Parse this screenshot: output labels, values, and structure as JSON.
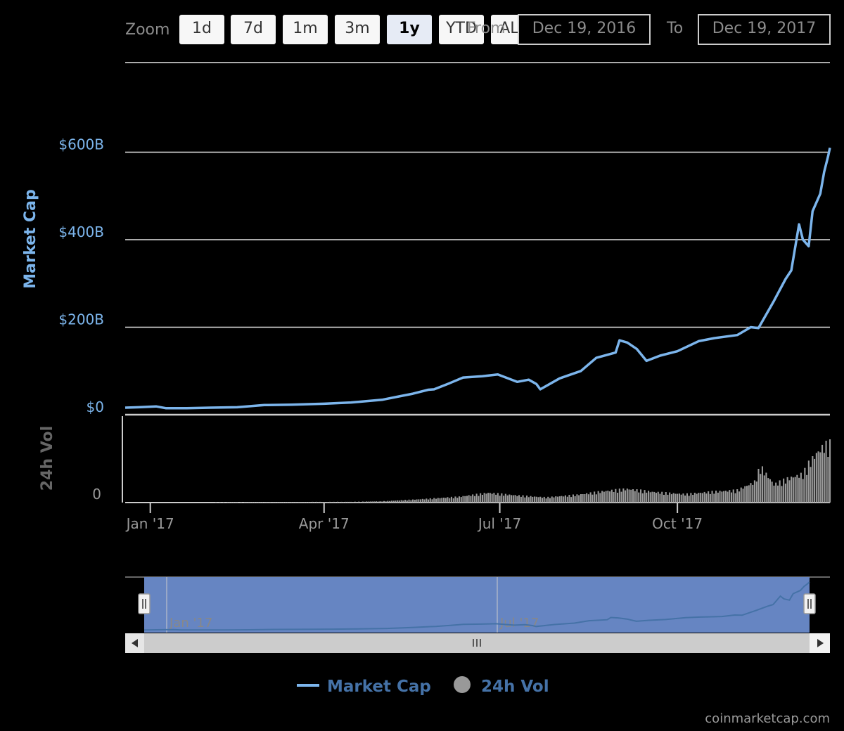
{
  "zoom": {
    "label": "Zoom",
    "buttons": [
      {
        "label": "1d",
        "active": false
      },
      {
        "label": "7d",
        "active": false
      },
      {
        "label": "1m",
        "active": false
      },
      {
        "label": "3m",
        "active": false
      },
      {
        "label": "1y",
        "active": true
      },
      {
        "label": "YTD",
        "active": false
      },
      {
        "label": "ALL",
        "active": false
      }
    ]
  },
  "range": {
    "from_label": "From",
    "from_value": "Dec 19, 2016",
    "to_label": "To",
    "to_value": "Dec 19, 2017"
  },
  "colors": {
    "market_cap": "#7cb5ec",
    "volume": "#999999",
    "navigator_fill": "#6685c2",
    "legend_text": "#4572a7",
    "grid": "#e6e6e6"
  },
  "chart_data": {
    "type": "line",
    "series": [
      {
        "name": "Market Cap",
        "axis": "y",
        "values": [
          [
            "2016-12-19",
            16
          ],
          [
            "2016-12-26",
            17
          ],
          [
            "2017-01-04",
            19
          ],
          [
            "2017-01-09",
            15
          ],
          [
            "2017-01-20",
            15
          ],
          [
            "2017-02-01",
            16
          ],
          [
            "2017-02-15",
            17
          ],
          [
            "2017-03-01",
            22
          ],
          [
            "2017-03-15",
            23
          ],
          [
            "2017-04-01",
            25
          ],
          [
            "2017-04-15",
            28
          ],
          [
            "2017-05-01",
            34
          ],
          [
            "2017-05-10",
            42
          ],
          [
            "2017-05-17",
            48
          ],
          [
            "2017-05-25",
            57
          ],
          [
            "2017-05-28",
            58
          ],
          [
            "2017-06-05",
            72
          ],
          [
            "2017-06-12",
            85
          ],
          [
            "2017-06-22",
            88
          ],
          [
            "2017-06-30",
            92
          ],
          [
            "2017-07-10",
            75
          ],
          [
            "2017-07-16",
            80
          ],
          [
            "2017-07-20",
            70
          ],
          [
            "2017-07-22",
            58
          ],
          [
            "2017-08-01",
            83
          ],
          [
            "2017-08-12",
            100
          ],
          [
            "2017-08-20",
            130
          ],
          [
            "2017-08-30",
            142
          ],
          [
            "2017-09-01",
            170
          ],
          [
            "2017-09-05",
            165
          ],
          [
            "2017-09-10",
            150
          ],
          [
            "2017-09-15",
            123
          ],
          [
            "2017-09-22",
            135
          ],
          [
            "2017-10-01",
            145
          ],
          [
            "2017-10-12",
            168
          ],
          [
            "2017-10-20",
            175
          ],
          [
            "2017-11-01",
            182
          ],
          [
            "2017-11-08",
            200
          ],
          [
            "2017-11-12",
            198
          ],
          [
            "2017-11-20",
            260
          ],
          [
            "2017-11-26",
            310
          ],
          [
            "2017-11-29",
            330
          ],
          [
            "2017-12-03",
            435
          ],
          [
            "2017-12-05",
            400
          ],
          [
            "2017-12-08",
            385
          ],
          [
            "2017-12-10",
            465
          ],
          [
            "2017-12-14",
            505
          ],
          [
            "2017-12-16",
            555
          ],
          [
            "2017-12-18",
            590
          ],
          [
            "2017-12-19",
            610
          ]
        ]
      },
      {
        "name": "24h Vol",
        "axis": "y2",
        "values": [
          [
            "2016-12-19",
            0.2
          ],
          [
            "2017-02-01",
            0.3
          ],
          [
            "2017-03-15",
            0.5
          ],
          [
            "2017-04-15",
            0.6
          ],
          [
            "2017-05-01",
            1.0
          ],
          [
            "2017-05-20",
            2.5
          ],
          [
            "2017-06-10",
            4.5
          ],
          [
            "2017-06-25",
            7.5
          ],
          [
            "2017-07-10",
            5.5
          ],
          [
            "2017-07-25",
            4.0
          ],
          [
            "2017-08-10",
            6.0
          ],
          [
            "2017-08-25",
            9.0
          ],
          [
            "2017-09-05",
            10.5
          ],
          [
            "2017-09-20",
            8.0
          ],
          [
            "2017-10-05",
            6.5
          ],
          [
            "2017-10-20",
            8.5
          ],
          [
            "2017-11-01",
            9.5
          ],
          [
            "2017-11-10",
            16.0
          ],
          [
            "2017-11-13",
            28.0
          ],
          [
            "2017-11-20",
            14.0
          ],
          [
            "2017-11-28",
            19.0
          ],
          [
            "2017-12-05",
            22.0
          ],
          [
            "2017-12-08",
            30.0
          ],
          [
            "2017-12-12",
            38.0
          ],
          [
            "2017-12-16",
            44.0
          ],
          [
            "2017-12-19",
            45.0
          ]
        ]
      }
    ],
    "y_axis": {
      "title": "Market Cap",
      "ticks": [
        "$0",
        "$200B",
        "$400B",
        "$600B"
      ],
      "tick_values": [
        0,
        200,
        400,
        600
      ],
      "range": [
        0,
        800
      ]
    },
    "y2_axis": {
      "title": "24h Vol",
      "ticks": [
        "0"
      ],
      "range": [
        0,
        50
      ]
    },
    "x_axis": {
      "start": "2016-12-19",
      "end": "2017-12-19",
      "ticks": [
        {
          "date": "2017-01-01",
          "label": "Jan '17"
        },
        {
          "date": "2017-04-01",
          "label": "Apr '17"
        },
        {
          "date": "2017-07-01",
          "label": "Jul '17"
        },
        {
          "date": "2017-10-01",
          "label": "Oct '17"
        }
      ]
    },
    "navigator": {
      "labels": [
        "Jan '17",
        "Jul '17"
      ],
      "label_dates": [
        "2017-01-01",
        "2017-07-01"
      ]
    },
    "legend": {
      "position": "bottom-center",
      "items": [
        "Market Cap",
        "24h Vol"
      ]
    }
  },
  "credit": "coinmarketcap.com"
}
